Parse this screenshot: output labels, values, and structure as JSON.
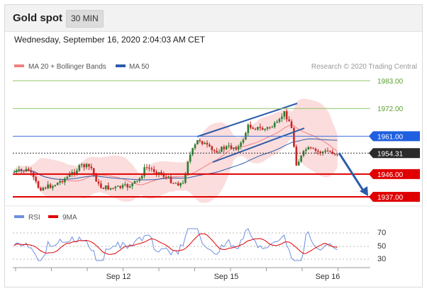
{
  "header": {
    "title": "Gold spot",
    "timeframe": "30 MIN"
  },
  "timestamp": "Wednesday, September 16, 2020 2:04:03 AM CET",
  "legend": {
    "ma20_label": "MA 20 + Bollinger Bands",
    "ma50_label": "MA 50",
    "copyright": "Research © 2020 Trading Central"
  },
  "colors": {
    "up": "#2e7d32",
    "down": "#c62828",
    "bands": "#f9c7c7",
    "ma20": "#f08080",
    "ma50": "#2b5caa",
    "resistance": "#8fc46b",
    "pivot": "#3c6fe0",
    "support": "#e00000",
    "current": "#333333",
    "rsi": "#6d8fe0",
    "rsi_ma": "#e00000"
  },
  "chart_data": [
    {
      "type": "line",
      "name": "price",
      "x_labels": [
        "Sep 12",
        "Sep 15",
        "Sep 16"
      ],
      "ylim": [
        1930,
        1990
      ],
      "series": [
        {
          "name": "MA 20 + Bollinger Bands"
        },
        {
          "name": "MA 50"
        }
      ],
      "levels": [
        {
          "value": 1983.0,
          "label": "1983.00",
          "kind": "resistance"
        },
        {
          "value": 1972.0,
          "label": "1972.00",
          "kind": "resistance"
        },
        {
          "value": 1961.0,
          "label": "1961.00",
          "kind": "pivot"
        },
        {
          "value": 1954.31,
          "label": "1954.31",
          "kind": "current"
        },
        {
          "value": 1946.0,
          "label": "1946.00",
          "kind": "support"
        },
        {
          "value": 1937.0,
          "label": "1937.00",
          "kind": "support"
        }
      ]
    },
    {
      "type": "line",
      "name": "rsi",
      "ylim": [
        20,
        80
      ],
      "y_ticks": [
        "70",
        "50",
        "30"
      ],
      "series": [
        {
          "name": "RSI"
        },
        {
          "name": "9MA"
        }
      ]
    }
  ]
}
